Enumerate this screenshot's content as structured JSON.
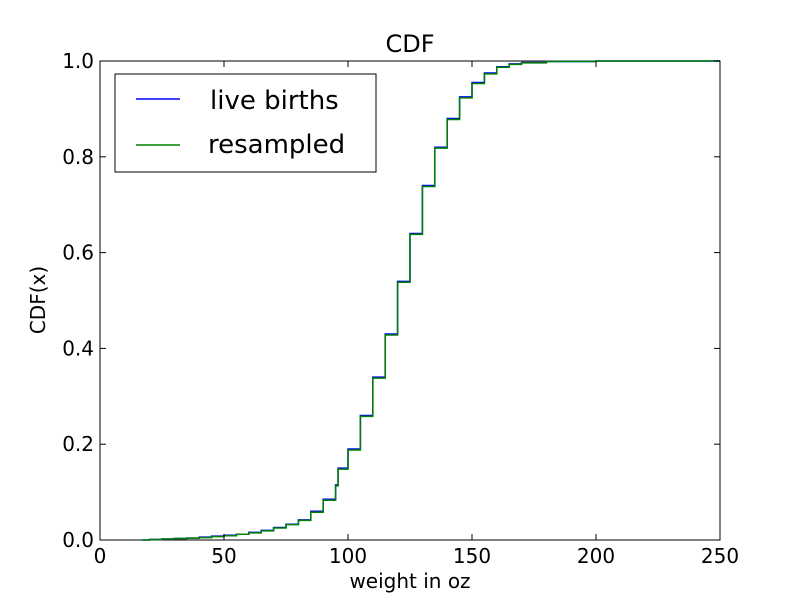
{
  "chart_data": {
    "type": "line",
    "title": "CDF",
    "xlabel": "weight in oz",
    "ylabel": "CDF(x)",
    "xlim": [
      0,
      250
    ],
    "ylim": [
      0.0,
      1.0
    ],
    "xticks": [
      "0",
      "50",
      "100",
      "150",
      "200",
      "250"
    ],
    "yticks": [
      "0.0",
      "0.2",
      "0.4",
      "0.6",
      "0.8",
      "1.0"
    ],
    "grid": false,
    "legend_position": "top-left",
    "series": [
      {
        "name": "live births",
        "color": "#0000ff",
        "points": [
          [
            17,
            0.0
          ],
          [
            20,
            0.001
          ],
          [
            25,
            0.002
          ],
          [
            30,
            0.003
          ],
          [
            35,
            0.004
          ],
          [
            40,
            0.006
          ],
          [
            45,
            0.008
          ],
          [
            50,
            0.01
          ],
          [
            55,
            0.012
          ],
          [
            60,
            0.016
          ],
          [
            65,
            0.02
          ],
          [
            70,
            0.026
          ],
          [
            75,
            0.033
          ],
          [
            80,
            0.042
          ],
          [
            85,
            0.06
          ],
          [
            90,
            0.085
          ],
          [
            95,
            0.115
          ],
          [
            96,
            0.15
          ],
          [
            100,
            0.19
          ],
          [
            105,
            0.26
          ],
          [
            110,
            0.34
          ],
          [
            115,
            0.43
          ],
          [
            120,
            0.54
          ],
          [
            125,
            0.64
          ],
          [
            130,
            0.74
          ],
          [
            135,
            0.82
          ],
          [
            140,
            0.88
          ],
          [
            145,
            0.925
          ],
          [
            150,
            0.955
          ],
          [
            155,
            0.975
          ],
          [
            160,
            0.988
          ],
          [
            165,
            0.994
          ],
          [
            170,
            0.997
          ],
          [
            180,
            0.999
          ],
          [
            200,
            1.0
          ]
        ]
      },
      {
        "name": "resampled",
        "color": "#008000",
        "points": [
          [
            17,
            0.0
          ],
          [
            20,
            0.001
          ],
          [
            25,
            0.002
          ],
          [
            30,
            0.003
          ],
          [
            35,
            0.004
          ],
          [
            40,
            0.005
          ],
          [
            45,
            0.007
          ],
          [
            50,
            0.009
          ],
          [
            55,
            0.012
          ],
          [
            60,
            0.015
          ],
          [
            65,
            0.019
          ],
          [
            70,
            0.025
          ],
          [
            75,
            0.032
          ],
          [
            80,
            0.041
          ],
          [
            85,
            0.058
          ],
          [
            90,
            0.083
          ],
          [
            95,
            0.113
          ],
          [
            96,
            0.148
          ],
          [
            100,
            0.188
          ],
          [
            105,
            0.258
          ],
          [
            110,
            0.338
          ],
          [
            115,
            0.428
          ],
          [
            120,
            0.538
          ],
          [
            125,
            0.638
          ],
          [
            130,
            0.738
          ],
          [
            135,
            0.818
          ],
          [
            140,
            0.878
          ],
          [
            145,
            0.923
          ],
          [
            150,
            0.953
          ],
          [
            155,
            0.973
          ],
          [
            160,
            0.987
          ],
          [
            165,
            0.993
          ],
          [
            170,
            0.996
          ],
          [
            180,
            0.999
          ],
          [
            200,
            1.0
          ]
        ]
      }
    ]
  }
}
